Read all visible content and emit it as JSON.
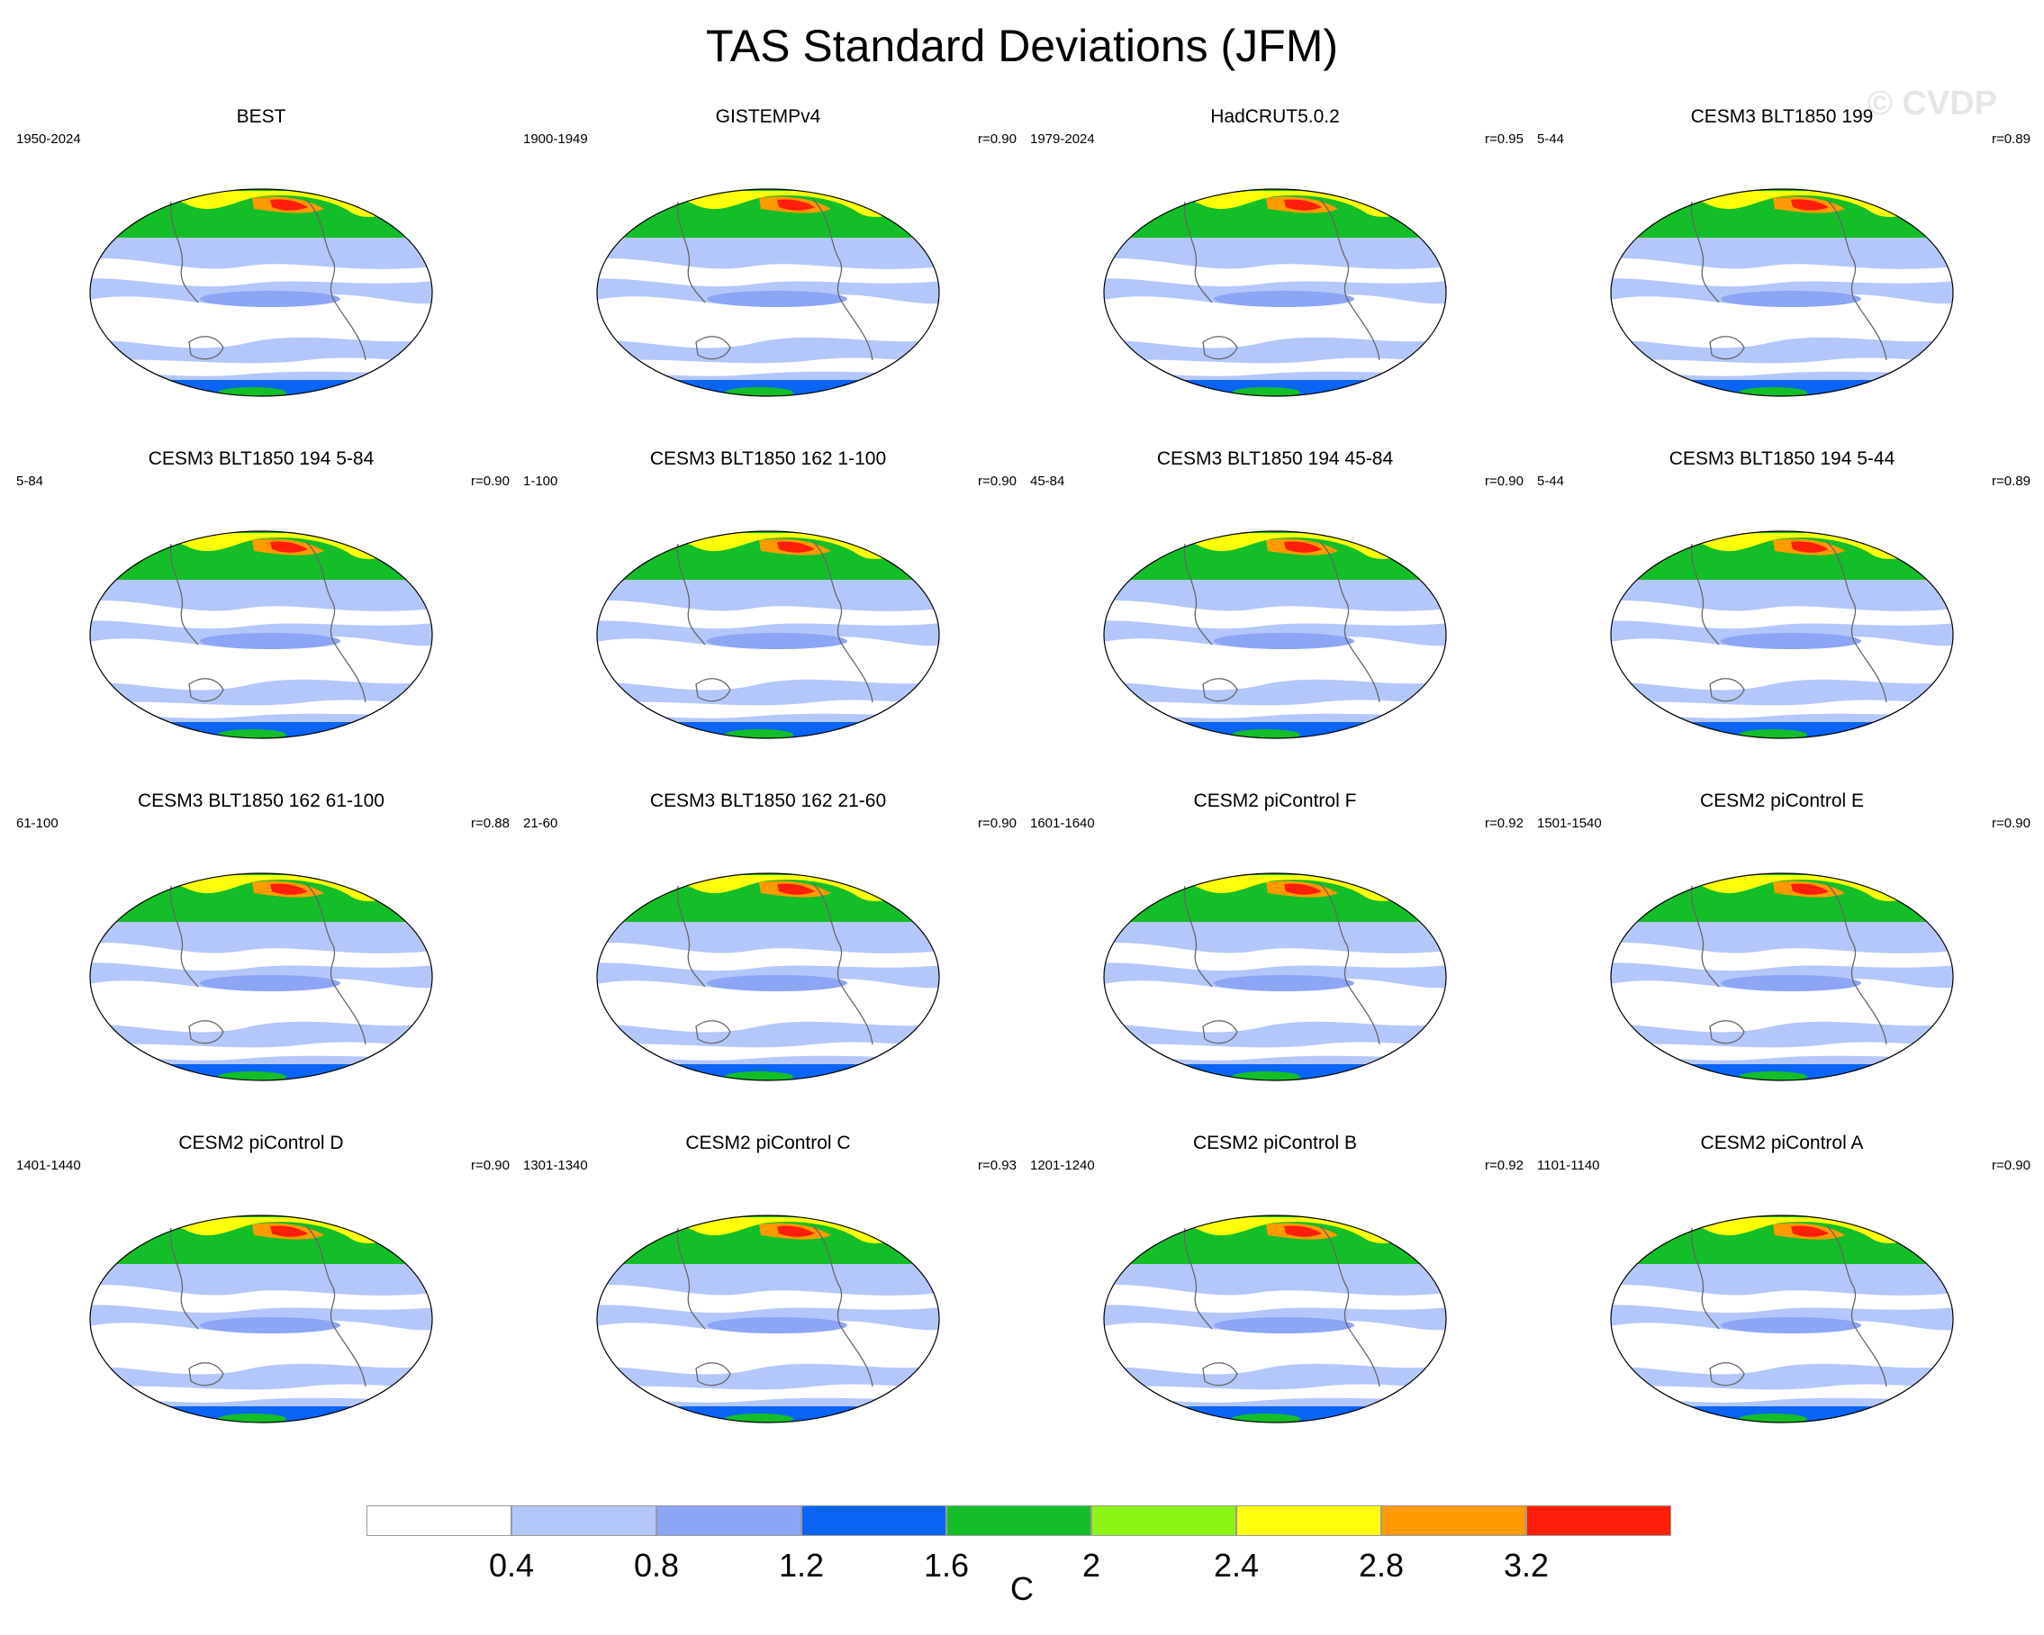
{
  "title": "TAS Standard Deviations (JFM)",
  "watermark": "© CVDP",
  "panels": [
    {
      "title": "BEST",
      "period": "1950-2024",
      "corr": ""
    },
    {
      "title": "GISTEMPv4",
      "period": "1900-1949",
      "corr": "r=0.90"
    },
    {
      "title": "HadCRUT5.0.2",
      "period": "1979-2024",
      "corr": "r=0.95"
    },
    {
      "title": "CESM3 BLT1850 199",
      "period": "5-44",
      "corr": "r=0.89"
    },
    {
      "title": "CESM3 BLT1850 194 5-84",
      "period": "5-84",
      "corr": "r=0.90"
    },
    {
      "title": "CESM3 BLT1850 162 1-100",
      "period": "1-100",
      "corr": "r=0.90"
    },
    {
      "title": "CESM3 BLT1850 194 45-84",
      "period": "45-84",
      "corr": "r=0.90"
    },
    {
      "title": "CESM3 BLT1850 194 5-44",
      "period": "5-44",
      "corr": "r=0.89"
    },
    {
      "title": "CESM3 BLT1850 162 61-100",
      "period": "61-100",
      "corr": "r=0.88"
    },
    {
      "title": "CESM3 BLT1850 162 21-60",
      "period": "21-60",
      "corr": "r=0.90"
    },
    {
      "title": "CESM2 piControl F",
      "period": "1601-1640",
      "corr": "r=0.92"
    },
    {
      "title": "CESM2 piControl E",
      "period": "1501-1540",
      "corr": "r=0.90"
    },
    {
      "title": "CESM2 piControl D",
      "period": "1401-1440",
      "corr": "r=0.90"
    },
    {
      "title": "CESM2 piControl C",
      "period": "1301-1340",
      "corr": "r=0.93"
    },
    {
      "title": "CESM2 piControl B",
      "period": "1201-1240",
      "corr": "r=0.92"
    },
    {
      "title": "CESM2 piControl A",
      "period": "1101-1140",
      "corr": "r=0.90"
    }
  ],
  "colorbar": {
    "colors": [
      "#ffffff",
      "#b4c7fa",
      "#8ca5f5",
      "#0a64f5",
      "#14be28",
      "#8cf514",
      "#ffff0a",
      "#ff9b00",
      "#ff1e0a"
    ],
    "ticks": [
      "0.4",
      "0.8",
      "1.2",
      "1.6",
      "2",
      "2.4",
      "2.8",
      "3.2"
    ],
    "unit": "C"
  }
}
